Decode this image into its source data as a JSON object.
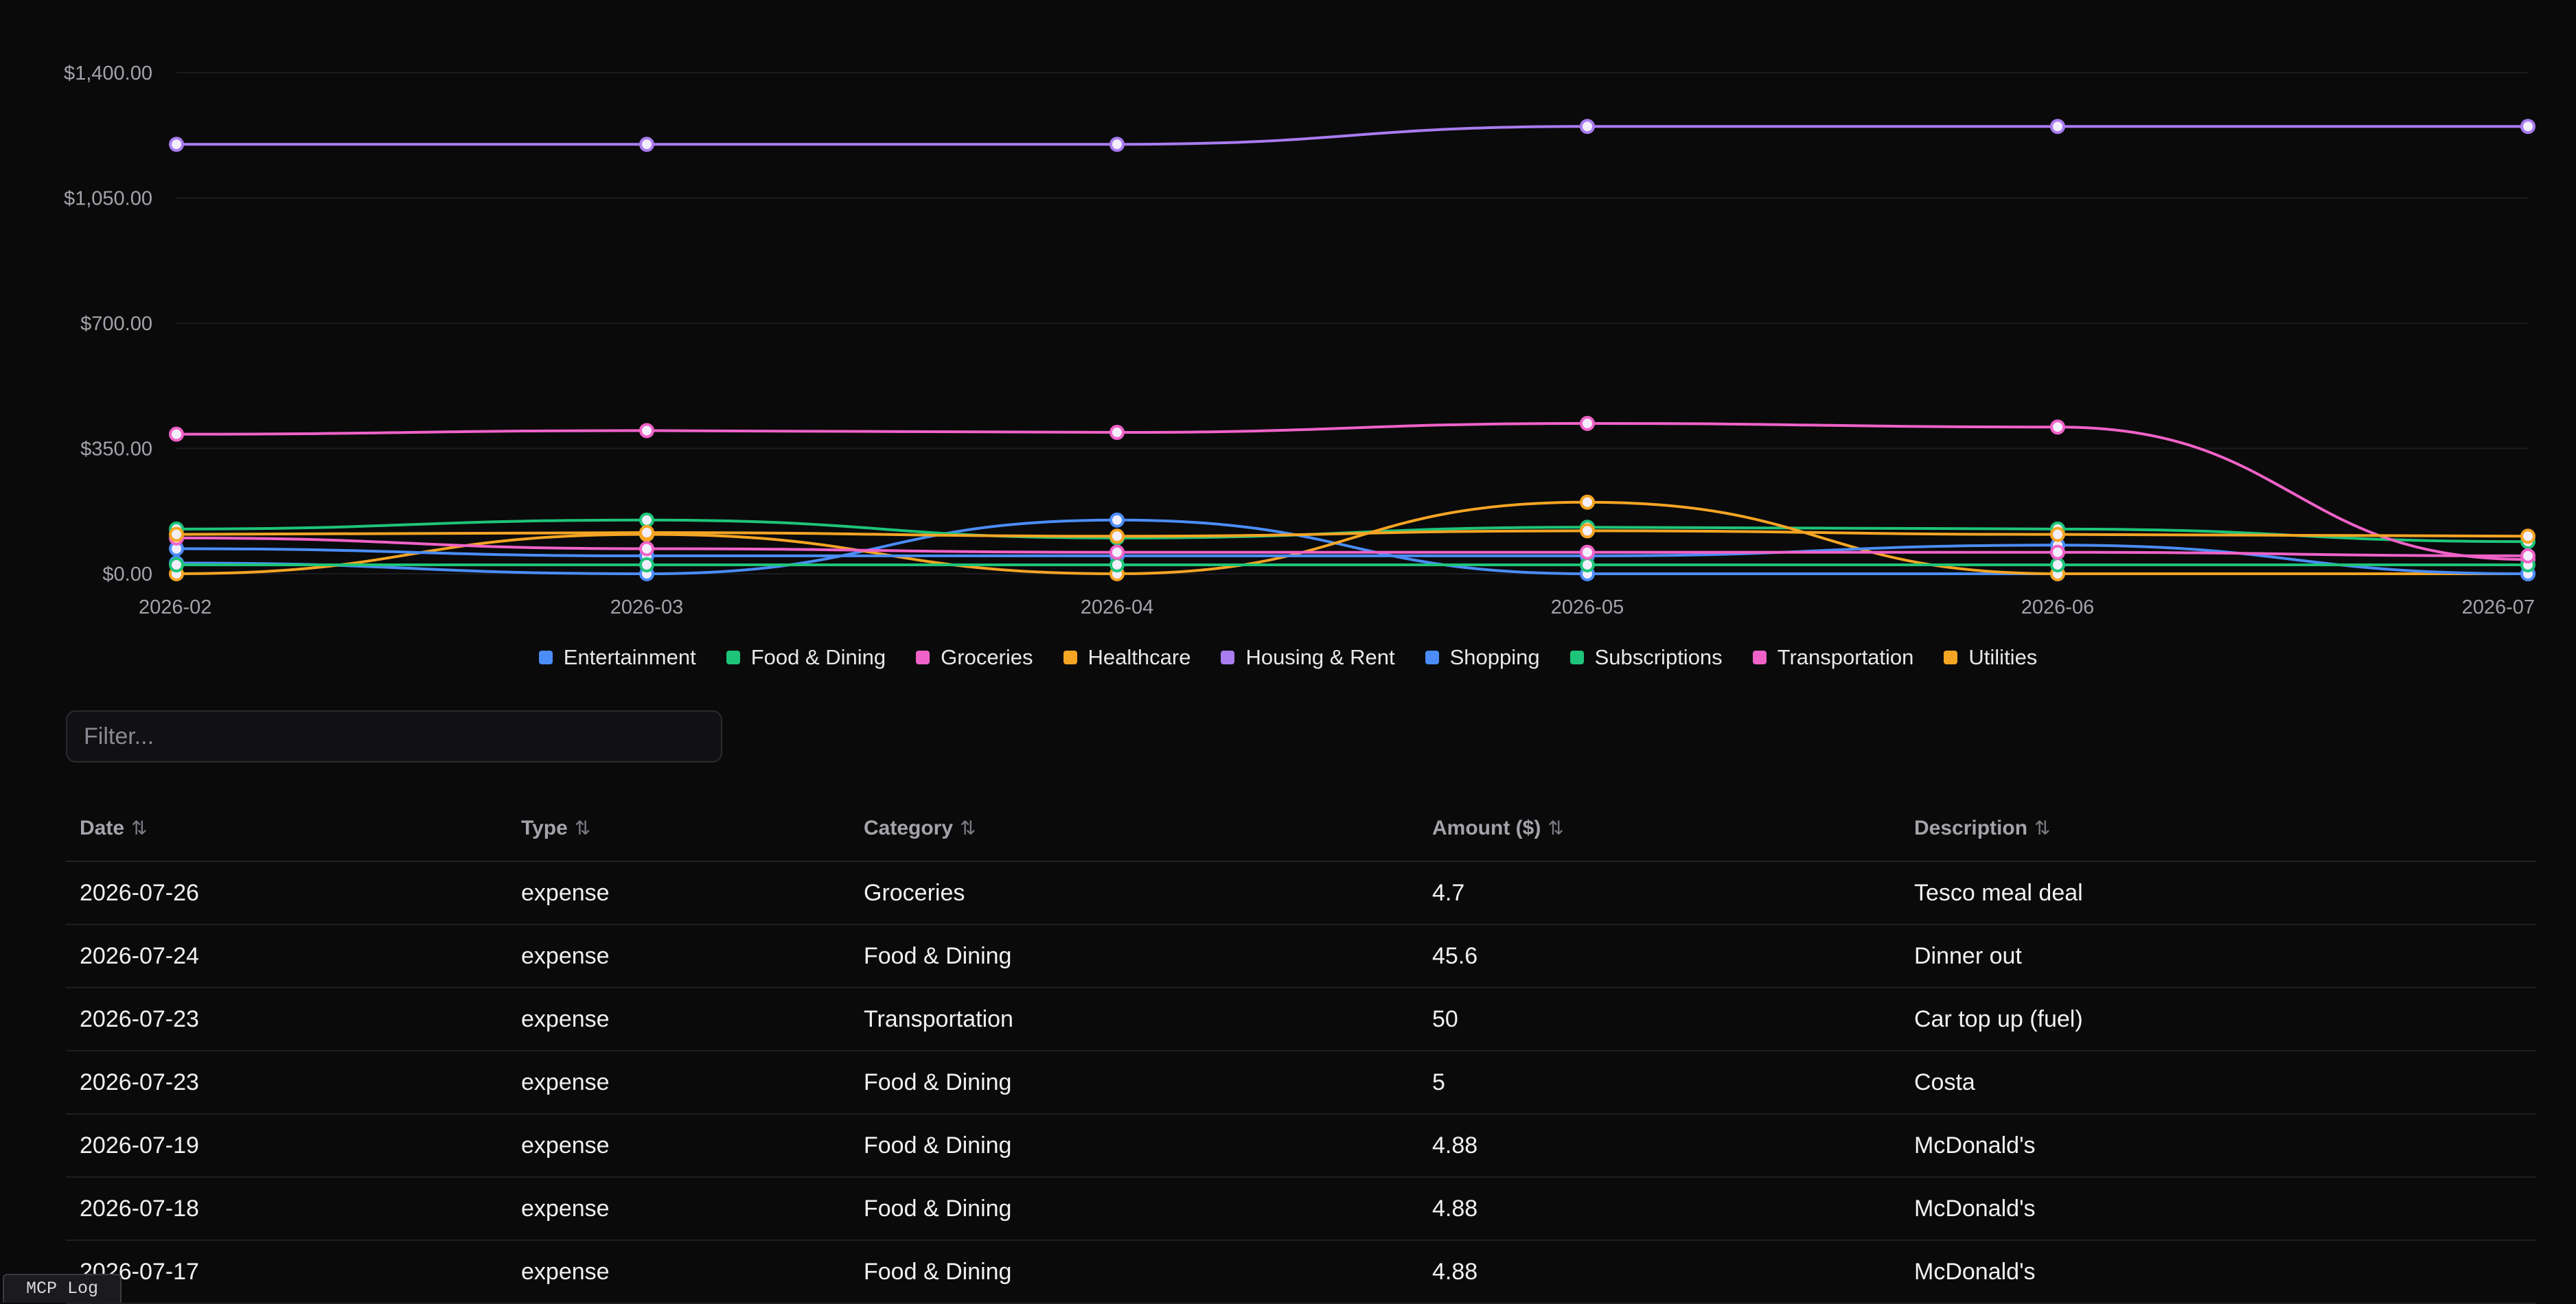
{
  "chart_data": {
    "type": "line",
    "x": [
      "2026-02",
      "2026-03",
      "2026-04",
      "2026-05",
      "2026-06",
      "2026-07"
    ],
    "y_ticks": [
      "$0.00",
      "$350.00",
      "$700.00",
      "$1,050.00",
      "$1,400.00"
    ],
    "ylim": [
      0,
      1400
    ],
    "grid": true,
    "legend_position": "bottom",
    "series": [
      {
        "name": "Entertainment",
        "color": "#4b8df8",
        "values": [
          30,
          0,
          150,
          0,
          0,
          0
        ]
      },
      {
        "name": "Food & Dining",
        "color": "#1ec479",
        "values": [
          125,
          150,
          100,
          130,
          125,
          90
        ]
      },
      {
        "name": "Groceries",
        "color": "#f062c8",
        "values": [
          390,
          400,
          395,
          420,
          410,
          40
        ]
      },
      {
        "name": "Healthcare",
        "color": "#f5a524",
        "values": [
          0,
          110,
          0,
          200,
          0,
          0
        ]
      },
      {
        "name": "Housing & Rent",
        "color": "#a97cf0",
        "values": [
          1200,
          1200,
          1200,
          1250,
          1250,
          1250
        ]
      },
      {
        "name": "Shopping",
        "color": "#4b8df8",
        "values": [
          70,
          50,
          50,
          50,
          80,
          0
        ]
      },
      {
        "name": "Subscriptions",
        "color": "#1ec479",
        "values": [
          25,
          25,
          25,
          25,
          25,
          25
        ]
      },
      {
        "name": "Transportation",
        "color": "#f062c8",
        "values": [
          100,
          70,
          60,
          60,
          60,
          50
        ]
      },
      {
        "name": "Utilities",
        "color": "#f5a524",
        "values": [
          110,
          115,
          105,
          120,
          110,
          105
        ]
      }
    ]
  },
  "filter": {
    "placeholder": "Filter..."
  },
  "table": {
    "headers": [
      "Date",
      "Type",
      "Category",
      "Amount ($)",
      "Description"
    ],
    "sort_glyph": "⇅",
    "rows": [
      [
        "2026-07-26",
        "expense",
        "Groceries",
        "4.7",
        "Tesco meal deal"
      ],
      [
        "2026-07-24",
        "expense",
        "Food & Dining",
        "45.6",
        "Dinner out"
      ],
      [
        "2026-07-23",
        "expense",
        "Transportation",
        "50",
        "Car top up (fuel)"
      ],
      [
        "2026-07-23",
        "expense",
        "Food & Dining",
        "5",
        "Costa"
      ],
      [
        "2026-07-19",
        "expense",
        "Food & Dining",
        "4.88",
        "McDonald's"
      ],
      [
        "2026-07-18",
        "expense",
        "Food & Dining",
        "4.88",
        "McDonald's"
      ],
      [
        "2026-07-17",
        "expense",
        "Food & Dining",
        "4.88",
        "McDonald's"
      ]
    ]
  },
  "mcp_log": {
    "label": "MCP Log"
  }
}
